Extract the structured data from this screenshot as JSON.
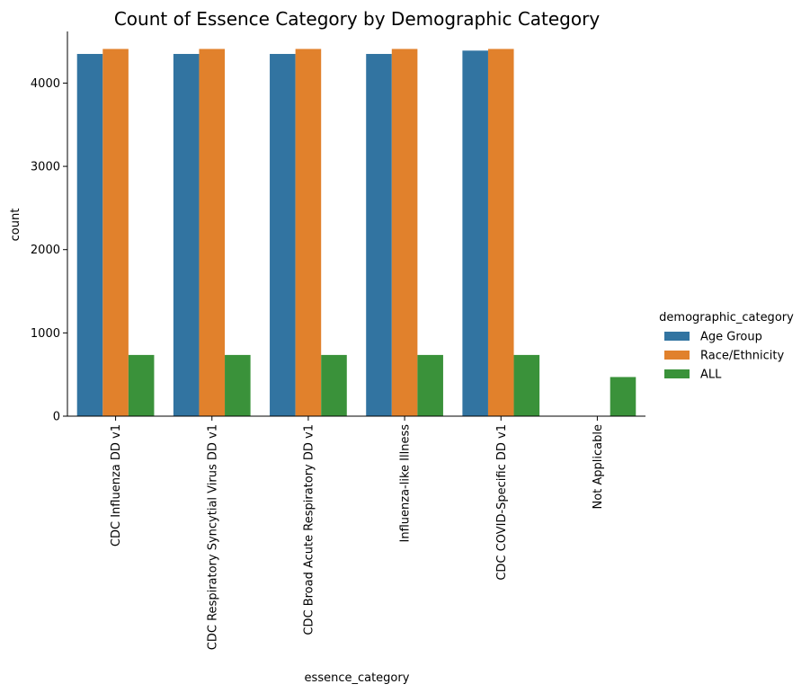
{
  "chart_data": {
    "type": "bar",
    "title": "Count of Essence Category by Demographic Category",
    "xlabel": "essence_category",
    "ylabel": "count",
    "ylim": [
      0,
      4620
    ],
    "yticks": [
      0,
      1000,
      2000,
      3000,
      4000
    ],
    "categories": [
      "CDC Influenza DD v1",
      "CDC Respiratory Syncytial Virus DD v1",
      "CDC Broad Acute Respiratory DD v1",
      "Influenza-like Illness",
      "CDC COVID-Specific DD v1",
      "Not Applicable"
    ],
    "series": [
      {
        "name": "Age Group",
        "color": "#3274a1",
        "values": [
          4350,
          4350,
          4350,
          4350,
          4390,
          0
        ]
      },
      {
        "name": "Race/Ethnicity",
        "color": "#e1812c",
        "values": [
          4410,
          4410,
          4410,
          4410,
          4410,
          0
        ]
      },
      {
        "name": "ALL",
        "color": "#3a923a",
        "values": [
          735,
          735,
          735,
          735,
          735,
          470
        ]
      }
    ],
    "legend": {
      "title": "demographic_category",
      "placement": "right"
    },
    "grid": false
  }
}
